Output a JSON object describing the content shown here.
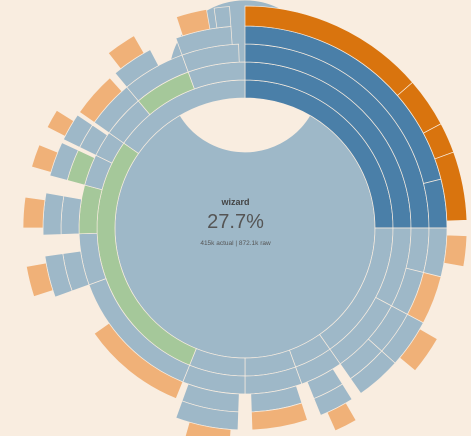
{
  "center": {
    "name": "wizard",
    "percentage": "27.7%",
    "detail": "415k actual | 872.1k raw"
  },
  "colors": {
    "background": "#f9ede0",
    "root_ring": "#9eb8c8",
    "gray_blue": "#9eb8c8",
    "green": "#a5c89a",
    "dark_blue": "#4a7fa8",
    "orange": "#d9740e",
    "light_orange": "#f0b178"
  },
  "chart_data": {
    "type": "sunburst",
    "title": "",
    "root": {
      "name": "wizard",
      "share": "27.7%",
      "actual": "415k",
      "raw": "872.1k"
    },
    "rings": 6,
    "segments": [
      {
        "ring": 1,
        "start": 0,
        "end": 360,
        "kind": "gray_blue"
      },
      {
        "ring": 2,
        "start": 0,
        "end": 90,
        "kind": "dark_blue"
      },
      {
        "ring": 2,
        "start": 90,
        "end": 145,
        "kind": "gray_blue"
      },
      {
        "ring": 2,
        "start": 145,
        "end": 160,
        "kind": "gray_blue"
      },
      {
        "ring": 2,
        "start": 160,
        "end": 180,
        "kind": "gray_blue"
      },
      {
        "ring": 2,
        "start": 180,
        "end": 202,
        "kind": "gray_blue"
      },
      {
        "ring": 2,
        "start": 202,
        "end": 305,
        "kind": "green"
      },
      {
        "ring": 2,
        "start": 305,
        "end": 360,
        "kind": "gray_blue"
      },
      {
        "ring": 3,
        "start": 0,
        "end": 90,
        "kind": "dark_blue"
      },
      {
        "ring": 3,
        "start": 90,
        "end": 118,
        "kind": "gray_blue"
      },
      {
        "ring": 3,
        "start": 118,
        "end": 145,
        "kind": "gray_blue"
      },
      {
        "ring": 3,
        "start": 145,
        "end": 160,
        "kind": "gray_blue"
      },
      {
        "ring": 3,
        "start": 160,
        "end": 180,
        "kind": "gray_blue"
      },
      {
        "ring": 3,
        "start": 180,
        "end": 202,
        "kind": "gray_blue"
      },
      {
        "ring": 3,
        "start": 202,
        "end": 250,
        "kind": "gray_blue"
      },
      {
        "ring": 3,
        "start": 250,
        "end": 268,
        "kind": "gray_blue"
      },
      {
        "ring": 3,
        "start": 268,
        "end": 285,
        "kind": "green"
      },
      {
        "ring": 3,
        "start": 285,
        "end": 296,
        "kind": "gray_blue"
      },
      {
        "ring": 3,
        "start": 296,
        "end": 305,
        "kind": "gray_blue"
      },
      {
        "ring": 3,
        "start": 305,
        "end": 320,
        "kind": "gray_blue"
      },
      {
        "ring": 3,
        "start": 320,
        "end": 340,
        "kind": "green"
      },
      {
        "ring": 3,
        "start": 340,
        "end": 360,
        "kind": "gray_blue"
      },
      {
        "ring": 4,
        "start": 0,
        "end": 90,
        "kind": "dark_blue"
      },
      {
        "ring": 4,
        "start": 90,
        "end": 104,
        "kind": "gray_blue"
      },
      {
        "ring": 4,
        "start": 104,
        "end": 118,
        "kind": "gray_blue"
      },
      {
        "ring": 4,
        "start": 118,
        "end": 132,
        "kind": "gray_blue"
      },
      {
        "ring": 4,
        "start": 132,
        "end": 145,
        "kind": "gray_blue"
      },
      {
        "ring": 4,
        "start": 148,
        "end": 158,
        "kind": "gray_blue"
      },
      {
        "ring": 4,
        "start": 162,
        "end": 178,
        "kind": "gray_blue"
      },
      {
        "ring": 4,
        "start": 182,
        "end": 200,
        "kind": "gray_blue"
      },
      {
        "ring": 4,
        "start": 202,
        "end": 235,
        "kind": "light_orange"
      },
      {
        "ring": 4,
        "start": 250,
        "end": 262,
        "kind": "gray_blue"
      },
      {
        "ring": 4,
        "start": 268,
        "end": 280,
        "kind": "gray_blue"
      },
      {
        "ring": 4,
        "start": 285,
        "end": 295,
        "kind": "green"
      },
      {
        "ring": 4,
        "start": 296,
        "end": 304,
        "kind": "gray_blue"
      },
      {
        "ring": 4,
        "start": 305,
        "end": 320,
        "kind": "gray_blue"
      },
      {
        "ring": 4,
        "start": 320,
        "end": 340,
        "kind": "gray_blue"
      },
      {
        "ring": 4,
        "start": 340,
        "end": 358,
        "kind": "gray_blue"
      },
      {
        "ring": 5,
        "start": 0,
        "end": 76,
        "kind": "dark_blue"
      },
      {
        "ring": 5,
        "start": 76,
        "end": 90,
        "kind": "dark_blue"
      },
      {
        "ring": 5,
        "start": 90,
        "end": 104,
        "kind": "gray_blue"
      },
      {
        "ring": 5,
        "start": 104,
        "end": 118,
        "kind": "light_orange"
      },
      {
        "ring": 5,
        "start": 118,
        "end": 132,
        "kind": "gray_blue"
      },
      {
        "ring": 5,
        "start": 132,
        "end": 145,
        "kind": "gray_blue"
      },
      {
        "ring": 5,
        "start": 148,
        "end": 158,
        "kind": "gray_blue"
      },
      {
        "ring": 5,
        "start": 162,
        "end": 178,
        "kind": "light_orange"
      },
      {
        "ring": 5,
        "start": 182,
        "end": 200,
        "kind": "gray_blue"
      },
      {
        "ring": 5,
        "start": 250,
        "end": 262,
        "kind": "gray_blue"
      },
      {
        "ring": 5,
        "start": 268,
        "end": 280,
        "kind": "gray_blue"
      },
      {
        "ring": 5,
        "start": 285,
        "end": 295,
        "kind": "gray_blue"
      },
      {
        "ring": 5,
        "start": 296,
        "end": 304,
        "kind": "gray_blue"
      },
      {
        "ring": 5,
        "start": 305,
        "end": 318,
        "kind": "light_orange"
      },
      {
        "ring": 5,
        "start": 320,
        "end": 332,
        "kind": "gray_blue"
      },
      {
        "ring": 5,
        "start": 340,
        "end": 356,
        "kind": "gray_blue"
      },
      {
        "ring": 6,
        "start": 0,
        "end": 49,
        "kind": "orange"
      },
      {
        "ring": 6,
        "start": 49,
        "end": 62,
        "kind": "orange"
      },
      {
        "ring": 6,
        "start": 62,
        "end": 70,
        "kind": "orange"
      },
      {
        "ring": 6,
        "start": 70,
        "end": 88,
        "kind": "orange"
      },
      {
        "ring": 6,
        "start": 92,
        "end": 100,
        "kind": "light_orange"
      },
      {
        "ring": 6,
        "start": 120,
        "end": 130,
        "kind": "light_orange"
      },
      {
        "ring": 6,
        "start": 150,
        "end": 156,
        "kind": "light_orange"
      },
      {
        "ring": 6,
        "start": 184,
        "end": 196,
        "kind": "light_orange"
      },
      {
        "ring": 6,
        "start": 252,
        "end": 260,
        "kind": "light_orange"
      },
      {
        "ring": 6,
        "start": 270,
        "end": 278,
        "kind": "light_orange"
      },
      {
        "ring": 6,
        "start": 286,
        "end": 292,
        "kind": "light_orange"
      },
      {
        "ring": 6,
        "start": 297,
        "end": 302,
        "kind": "light_orange"
      },
      {
        "ring": 6,
        "start": 322,
        "end": 330,
        "kind": "light_orange"
      },
      {
        "ring": 6,
        "start": 342,
        "end": 350,
        "kind": "light_orange"
      },
      {
        "ring": 6,
        "start": 352,
        "end": 356,
        "kind": "gray_blue"
      }
    ]
  }
}
